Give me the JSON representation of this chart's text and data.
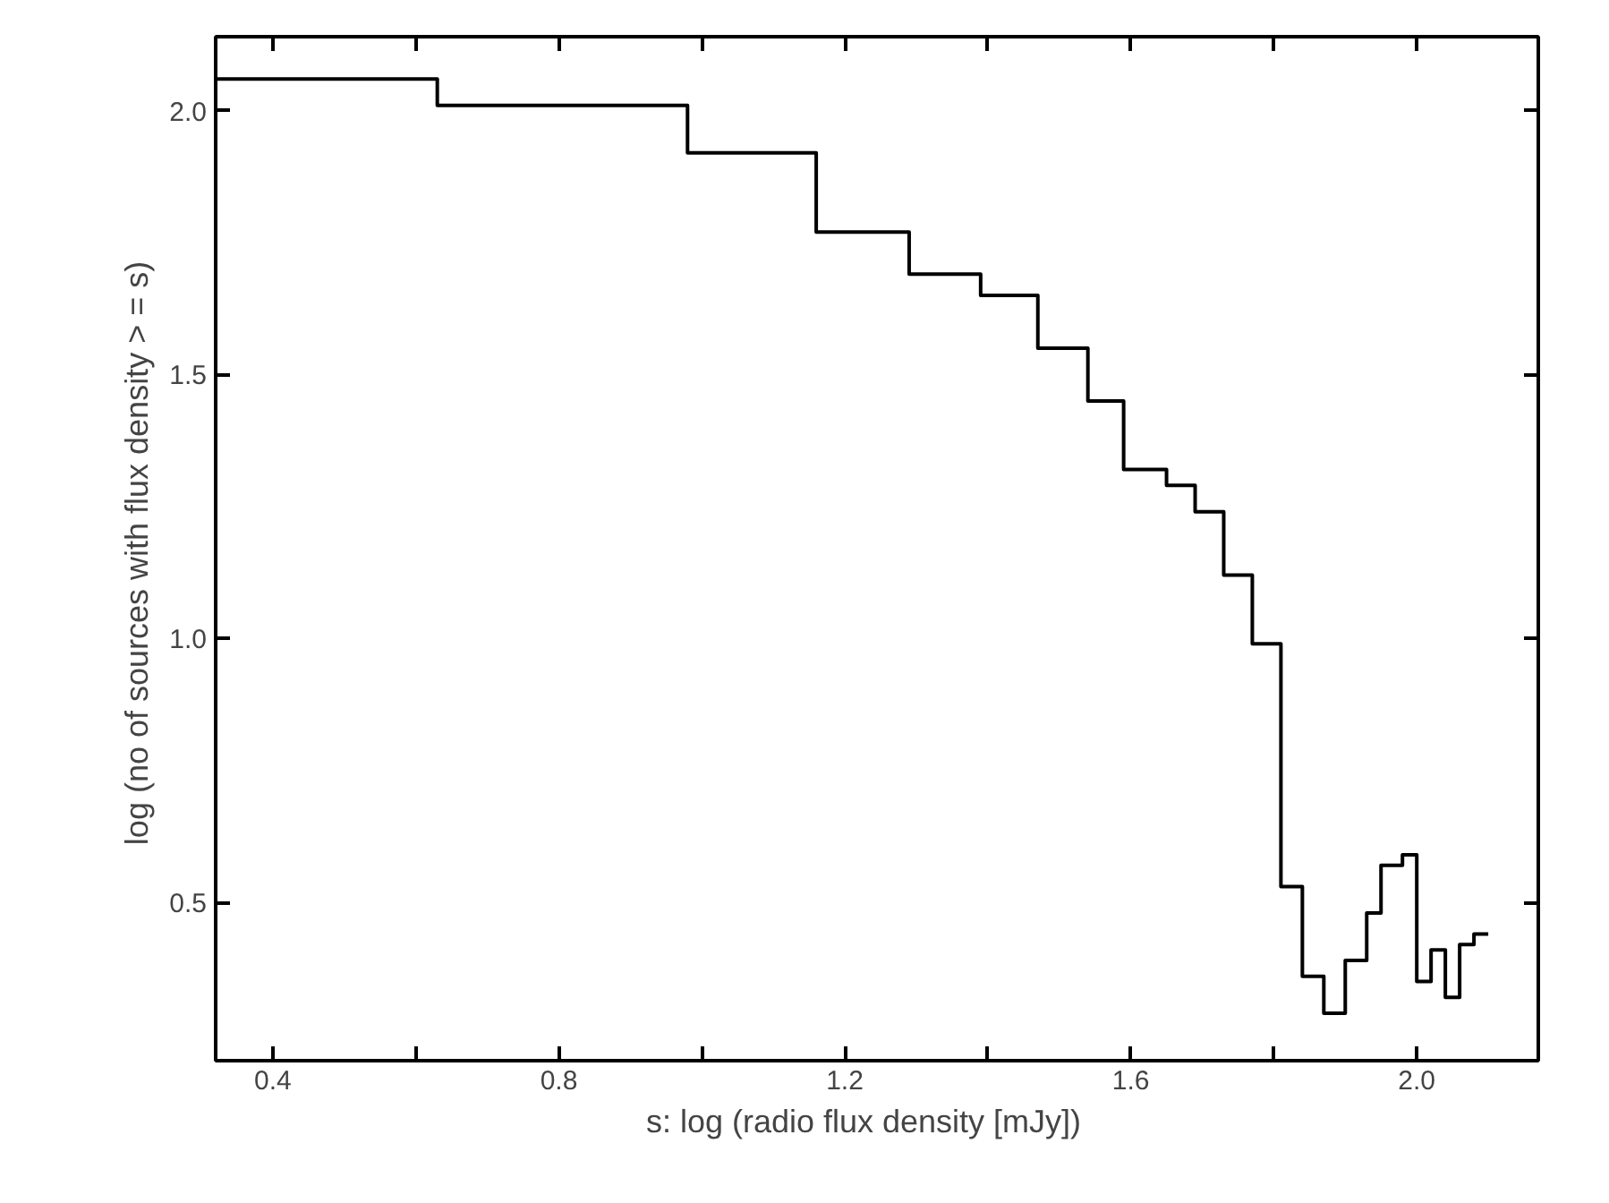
{
  "chart_data": {
    "type": "step",
    "xlabel": "s: log (radio  flux  density  [mJy])",
    "ylabel": "log (no of sources with flux density  > = s)",
    "x": [
      0.32,
      0.63,
      0.98,
      1.16,
      1.29,
      1.39,
      1.47,
      1.54,
      1.59,
      1.65,
      1.69,
      1.73,
      1.77,
      1.81,
      1.84,
      1.87,
      1.9,
      1.93,
      1.95,
      1.98,
      2.0,
      2.02,
      2.04,
      2.06,
      2.08,
      2.1
    ],
    "series": [
      {
        "color": "#000000",
        "values": [
          2.06,
          2.01,
          1.92,
          1.77,
          1.69,
          1.65,
          1.55,
          1.45,
          1.32,
          1.29,
          1.24,
          1.12,
          0.99,
          0.53,
          0.36,
          0.29,
          0.39,
          0.48,
          0.57,
          0.59,
          0.35,
          0.41,
          0.32,
          0.42,
          0.44,
          0.44
        ]
      }
    ],
    "xlim": [
      0.32,
      2.17
    ],
    "ylim": [
      0.2,
      2.14
    ],
    "xticks": [
      0.4,
      {
        "value": 0.6,
        "label": null
      },
      0.8,
      {
        "value": 1.0,
        "label": null
      },
      1.2,
      {
        "value": 1.4,
        "label": null
      },
      1.6,
      {
        "value": 1.8,
        "label": null
      },
      {
        "value": 2.0,
        "label": "2.0"
      }
    ],
    "yticks": [
      0.5,
      {
        "value": 1.0,
        "label": "1.0"
      },
      1.5,
      {
        "value": 2.0,
        "label": "2.0"
      }
    ],
    "grid": false
  }
}
